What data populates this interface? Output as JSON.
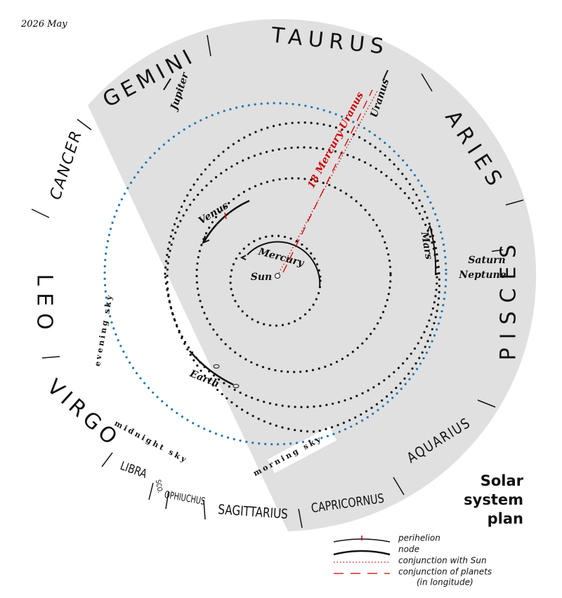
{
  "date": "2026 May",
  "title": {
    "lines": [
      "Solar",
      "system",
      "plan"
    ]
  },
  "constellations": [
    "TAURUS",
    "GEMINI",
    "CANCER",
    "LEO",
    "VIRGO",
    "LIBRA",
    "SCO.",
    "OPHIUCHUS",
    "SAGITTARIUS",
    "CAPRICORNUS",
    "AQUARIUS",
    "PISCES",
    "ARIES"
  ],
  "bodies": [
    "Sun",
    "Mercury",
    "Venus",
    "Earth",
    "Mars",
    "Jupiter",
    "Saturn",
    "Uranus",
    "Neptune"
  ],
  "conjunction": "18 Mercury-Uranus",
  "sky_regions": [
    "evening sky",
    "midnight sky",
    "morning sky"
  ],
  "legend": [
    "perihelion",
    "node",
    "conjunction with Sun",
    "conjunction of planets",
    "(in longitude)"
  ]
}
